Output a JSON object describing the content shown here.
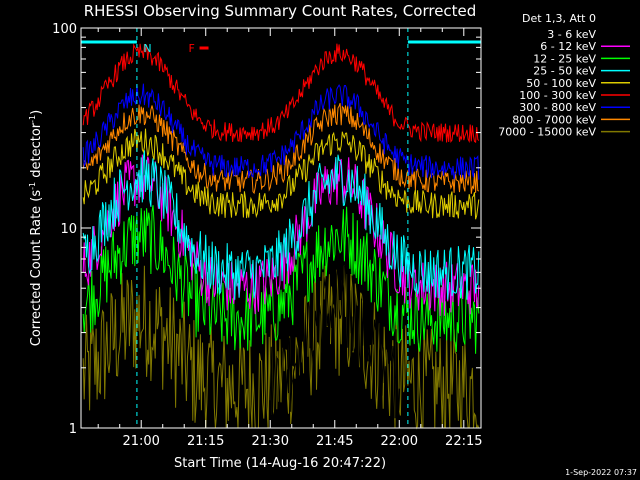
{
  "chart_data": {
    "type": "line",
    "title": "RHESSI Observing Summary Count Rates, Corrected",
    "xlabel": "Start Time (14-Aug-16 20:47:22)",
    "ylabel_main": "Corrected Count Rate (s",
    "ylabel_sup1": "-1",
    "ylabel_mid": " detector",
    "ylabel_sup2": "-1",
    "ylabel_end": ")",
    "yscale": "log",
    "ylim": [
      1,
      100
    ],
    "xlim_minutes": [
      -14,
      79
    ],
    "x_ticks": [
      {
        "label": "21:00",
        "minute": 0
      },
      {
        "label": "21:15",
        "minute": 15
      },
      {
        "label": "21:30",
        "minute": 30
      },
      {
        "label": "21:45",
        "minute": 45
      },
      {
        "label": "22:00",
        "minute": 60
      },
      {
        "label": "22:15",
        "minute": 75
      }
    ],
    "y_ticks": [
      {
        "label": "1",
        "value": 1
      },
      {
        "label": "10",
        "value": 10
      },
      {
        "label": "100",
        "value": 100
      }
    ],
    "legend_title": "Det 1,3, Att 0",
    "series": [
      {
        "name": "3 - 6 keV",
        "color": "#000000",
        "base": 1.6,
        "amp": 2.5,
        "noise": 0.25,
        "start": 30,
        "end": 60
      },
      {
        "name": "6 - 12 keV",
        "color": "#ff00ff",
        "base": 5,
        "amp": 3.5,
        "noise": 0.14
      },
      {
        "name": "12 - 25 keV",
        "color": "#00ff00",
        "base": 3.5,
        "amp": 2.6,
        "noise": 0.18
      },
      {
        "name": "25 - 50 keV",
        "color": "#00ffff",
        "base": 6,
        "amp": 3,
        "noise": 0.14
      },
      {
        "name": "50 - 100 keV",
        "color": "#ddcc00",
        "base": 13,
        "amp": 2.1,
        "noise": 0.07
      },
      {
        "name": "100 - 300 keV",
        "color": "#ff0000",
        "base": 30,
        "amp": 2.5,
        "noise": 0.05
      },
      {
        "name": "300 - 800 keV",
        "color": "#0000ff",
        "base": 20,
        "amp": 2.3,
        "noise": 0.06
      },
      {
        "name": "800 - 7000 keV",
        "color": "#ff8800",
        "base": 17,
        "amp": 2.2,
        "noise": 0.06
      },
      {
        "name": "7000 - 15000 keV",
        "color": "#807800",
        "base": 1.6,
        "amp": 2.2,
        "noise": 0.3
      }
    ],
    "annotations": [
      {
        "text": "N",
        "minute": 0.5,
        "color": "#00ffff"
      },
      {
        "text": "F",
        "minute": 11,
        "color": "#ff0000"
      }
    ],
    "night_segments": [
      {
        "start": -14,
        "end": -1,
        "color": "#00ffff"
      },
      {
        "start": 62,
        "end": 79,
        "color": "#00ffff"
      }
    ],
    "dashed_markers": [
      {
        "minute": -1,
        "color": "#00ffff"
      },
      {
        "minute": 62,
        "color": "#00ffff"
      },
      {
        "minute": 79,
        "color": "#00ffff"
      }
    ],
    "grid": false,
    "legend_position": "right"
  },
  "footer": {
    "timestamp": "1-Sep-2022 07:37"
  }
}
